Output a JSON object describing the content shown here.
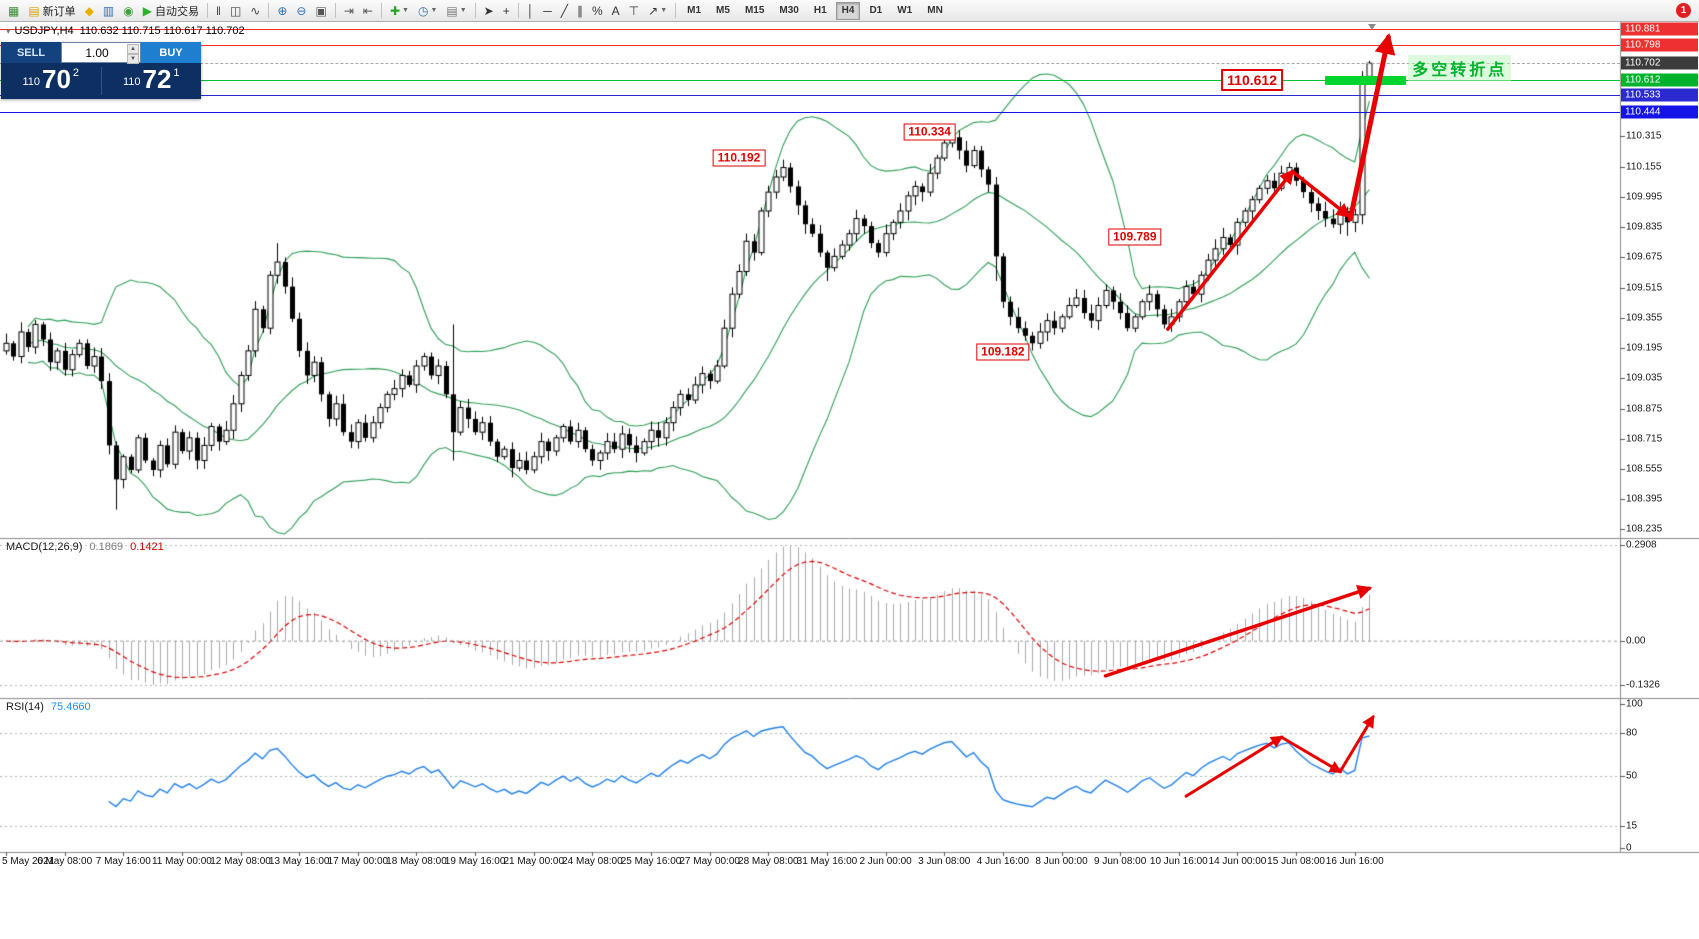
{
  "window": {
    "notification_count": "1"
  },
  "toolbar": {
    "buttons": [
      {
        "name": "new-chart-button",
        "glyph": "▦",
        "color": "#3c8a3c"
      },
      {
        "name": "new-order-button",
        "glyph": "▤",
        "color": "#d7a400",
        "label": "新订单"
      },
      {
        "name": "favorites-button",
        "glyph": "◆",
        "color": "#e8b000"
      },
      {
        "name": "market-watch-button",
        "glyph": "▥",
        "color": "#2f6fb0"
      },
      {
        "name": "navigator-button",
        "glyph": "◉",
        "color": "#3f9f3f"
      },
      {
        "name": "autotrading-button",
        "glyph": "▶",
        "color": "#28b428",
        "label": "自动交易"
      },
      {
        "type": "sep"
      },
      {
        "name": "bar-chart-button",
        "glyph": "‖",
        "color": "#444444"
      },
      {
        "name": "candlestick-chart-button",
        "glyph": "◫",
        "color": "#444444"
      },
      {
        "name": "line-chart-button",
        "glyph": "∿",
        "color": "#444444"
      },
      {
        "type": "sep"
      },
      {
        "name": "zoom-in-button",
        "glyph": "⊕",
        "color": "#2f6fb0"
      },
      {
        "name": "zoom-out-button",
        "glyph": "⊖",
        "color": "#2f6fb0"
      },
      {
        "name": "tile-windows-button",
        "glyph": "▣",
        "color": "#555555"
      },
      {
        "type": "sep"
      },
      {
        "name": "auto-scroll-button",
        "glyph": "⇥",
        "color": "#555555"
      },
      {
        "name": "chart-shift-button",
        "glyph": "⇤",
        "color": "#555555"
      },
      {
        "type": "sep"
      },
      {
        "name": "indicators-button",
        "glyph": "✚",
        "color": "#28a428",
        "dropdown": true
      },
      {
        "name": "periods-button",
        "glyph": "◷",
        "color": "#2f6fb0",
        "dropdown": true
      },
      {
        "name": "templates-button",
        "glyph": "▤",
        "color": "#777777",
        "dropdown": true
      },
      {
        "type": "sep"
      },
      {
        "name": "cursor-button",
        "glyph": "➤",
        "color": "#333333"
      },
      {
        "name": "crosshair-button",
        "glyph": "+",
        "color": "#333333"
      },
      {
        "type": "sep"
      },
      {
        "name": "vertical-line-button",
        "glyph": "│",
        "color": "#333333"
      },
      {
        "name": "horizontal-line-button",
        "glyph": "─",
        "color": "#333333"
      },
      {
        "name": "trendline-button",
        "glyph": "╱",
        "color": "#333333"
      },
      {
        "name": "equidistant-channel-button",
        "glyph": "∥",
        "color": "#333333"
      },
      {
        "name": "fibonacci-button",
        "glyph": "%",
        "color": "#333333"
      },
      {
        "name": "text-button",
        "glyph": "A",
        "color": "#333333"
      },
      {
        "name": "text-label-button",
        "glyph": "⊤",
        "color": "#333333"
      },
      {
        "name": "arrows-button",
        "glyph": "↗",
        "color": "#333333",
        "dropdown": true
      },
      {
        "type": "sep"
      }
    ],
    "timeframes": [
      "M1",
      "M5",
      "M15",
      "M30",
      "H1",
      "H4",
      "D1",
      "W1",
      "MN"
    ],
    "active_timeframe": "H4"
  },
  "quote_header": {
    "symbol_period": "USDJPY,H4",
    "ohlc": "110.632 110.715 110.617 110.702"
  },
  "trade_panel": {
    "sell_label": "SELL",
    "buy_label": "BUY",
    "volume": "1.00",
    "sell_price": {
      "prefix": "110",
      "big": "70",
      "sup": "2"
    },
    "buy_price": {
      "prefix": "110",
      "big": "72",
      "sup": "1"
    }
  },
  "chart_data": {
    "type": "candlestick",
    "symbol": "USDJPY",
    "period": "H4",
    "first_open": 109.18,
    "closes": [
      109.22,
      109.15,
      109.28,
      109.2,
      109.32,
      109.24,
      109.12,
      109.18,
      109.08,
      109.16,
      109.22,
      109.1,
      109.15,
      109.02,
      108.68,
      108.5,
      108.62,
      108.55,
      108.72,
      108.6,
      108.55,
      108.68,
      108.58,
      108.75,
      108.65,
      108.72,
      108.6,
      108.68,
      108.78,
      108.7,
      108.76,
      108.9,
      109.05,
      109.18,
      109.4,
      109.3,
      109.58,
      109.65,
      109.52,
      109.35,
      109.18,
      109.05,
      109.12,
      108.95,
      108.82,
      108.9,
      108.75,
      108.7,
      108.8,
      108.72,
      108.8,
      108.88,
      108.95,
      108.98,
      109.05,
      109.0,
      109.1,
      109.15,
      109.05,
      109.1,
      108.95,
      108.75,
      108.88,
      108.82,
      108.75,
      108.8,
      108.7,
      108.62,
      108.66,
      108.56,
      108.6,
      108.55,
      108.62,
      108.7,
      108.65,
      108.72,
      108.78,
      108.7,
      108.76,
      108.66,
      108.6,
      108.64,
      108.7,
      108.66,
      108.74,
      108.68,
      108.64,
      108.7,
      108.76,
      108.72,
      108.8,
      108.88,
      108.95,
      108.92,
      109.0,
      109.06,
      109.02,
      109.1,
      109.3,
      109.48,
      109.6,
      109.76,
      109.7,
      109.92,
      110.02,
      110.1,
      110.15,
      110.05,
      109.95,
      109.85,
      109.8,
      109.7,
      109.62,
      109.68,
      109.74,
      109.8,
      109.88,
      109.84,
      109.75,
      109.7,
      109.8,
      109.86,
      109.92,
      110.0,
      110.05,
      110.02,
      110.12,
      110.2,
      110.28,
      110.31,
      110.24,
      110.16,
      110.24,
      110.14,
      110.06,
      109.68,
      109.44,
      109.36,
      109.3,
      109.26,
      109.22,
      109.28,
      109.34,
      109.3,
      109.36,
      109.42,
      109.46,
      109.38,
      109.34,
      109.42,
      109.5,
      109.44,
      109.38,
      109.3,
      109.36,
      109.44,
      109.48,
      109.4,
      109.32,
      109.36,
      109.44,
      109.52,
      109.48,
      109.58,
      109.66,
      109.72,
      109.78,
      109.74,
      109.86,
      109.92,
      109.98,
      110.04,
      110.08,
      110.04,
      110.12,
      110.15,
      110.08,
      110.02,
      109.96,
      109.92,
      109.88,
      109.85,
      109.92,
      109.86,
      109.9,
      110.63,
      110.702
    ],
    "current_bar": {
      "open": 110.632,
      "high": 110.715,
      "low": 110.617,
      "close": 110.702
    },
    "wick_overrides": {
      "15": {
        "l": 108.34
      },
      "37": {
        "h": 109.75
      },
      "61": {
        "h": 109.32,
        "l": 108.6
      },
      "106": {
        "h": 110.192
      },
      "112": {
        "l": 109.55
      },
      "129": {
        "h": 110.334
      },
      "135": {
        "h": 110.1,
        "l": 109.55
      },
      "140": {
        "l": 109.182
      },
      "183": {
        "l": 109.789
      },
      "185": {
        "h": 110.66,
        "l": 109.85
      }
    },
    "time_labels": [
      "5 May 2021",
      "6 May 08:00",
      "7 May 16:00",
      "11 May 00:00",
      "12 May 08:00",
      "13 May 16:00",
      "17 May 00:00",
      "18 May 08:00",
      "19 May 16:00",
      "21 May 00:00",
      "24 May 08:00",
      "25 May 16:00",
      "27 May 00:00",
      "28 May 08:00",
      "31 May 16:00",
      "2 Jun 00:00",
      "3 Jun 08:00",
      "4 Jun 16:00",
      "8 Jun 00:00",
      "9 Jun 08:00",
      "10 Jun 16:00",
      "14 Jun 00:00",
      "15 Jun 08:00",
      "16 Jun 16:00"
    ],
    "price_axis": {
      "ticks": [
        "110.315",
        "110.155",
        "109.995",
        "109.835",
        "109.675",
        "109.515",
        "109.355",
        "109.195",
        "109.035",
        "108.875",
        "108.715",
        "108.555",
        "108.395",
        "108.235"
      ],
      "tags": [
        {
          "text": "110.881",
          "price": 110.881,
          "color": "#ef3030"
        },
        {
          "text": "110.798",
          "price": 110.798,
          "color": "#ef3030"
        },
        {
          "text": "110.702",
          "price": 110.702,
          "color": "#3c3c3c"
        },
        {
          "text": "110.612",
          "price": 110.612,
          "color": "#00b32c"
        },
        {
          "text": "110.533",
          "price": 110.533,
          "color": "#2a2ad0"
        },
        {
          "text": "110.444",
          "price": 110.444,
          "color": "#1414e6"
        }
      ]
    },
    "levels": [
      {
        "name": "resistance-line",
        "price": 110.881,
        "color": "#ff2a2a",
        "style": "solid"
      },
      {
        "name": "resistance-line",
        "price": 110.798,
        "color": "#ff2a2a",
        "style": "solid"
      },
      {
        "name": "bid-price-line",
        "price": 110.702,
        "color": "#a8a8a8",
        "style": "dashed"
      },
      {
        "name": "pivot-level-line",
        "price": 110.612,
        "color": "#00c232",
        "style": "solid"
      },
      {
        "name": "support-line",
        "price": 110.533,
        "color": "#2a2ad0",
        "style": "solid"
      },
      {
        "name": "support-line",
        "price": 110.444,
        "color": "#1414e6",
        "style": "solid"
      }
    ],
    "green_bar": {
      "from_bar": 180,
      "to_bar": 191,
      "price": 110.612,
      "color": "#00d42e"
    },
    "annotations": [
      {
        "text": "110.192",
        "bar": 100,
        "price": 110.2,
        "size": "normal"
      },
      {
        "text": "110.334",
        "bar": 126,
        "price": 110.34,
        "size": "normal"
      },
      {
        "text": "109.182",
        "bar": 136,
        "price": 109.175,
        "size": "normal"
      },
      {
        "text": "109.789",
        "bar": 154,
        "price": 109.785,
        "size": "normal"
      },
      {
        "text": "110.612",
        "bar": 170,
        "price": 110.615,
        "size": "big"
      }
    ],
    "pivot_note": {
      "text": "多空转折点",
      "bar": 191.3,
      "price": 110.678,
      "color": "#00b32c"
    },
    "trend_arrows": {
      "main": [
        {
          "points": [
            {
              "bar": 158.5,
              "price": 109.295
            },
            {
              "bar": 175.5,
              "price": 110.13
            }
          ],
          "width": 3.5
        },
        {
          "points": [
            {
              "bar": 175.5,
              "price": 110.13
            },
            {
              "bar": 183.2,
              "price": 109.893
            }
          ],
          "width": 3.5
        },
        {
          "points": [
            {
              "bar": 183.4,
              "price": 109.878
            },
            {
              "bar": 188.6,
              "price": 110.84
            }
          ],
          "width": 5
        }
      ],
      "macd": [
        {
          "points": [
            {
              "bar": 150,
              "value": -0.105
            },
            {
              "bar": 186,
              "value": 0.16
            }
          ],
          "width": 3.5
        }
      ],
      "rsi": [
        {
          "points": [
            {
              "bar": 161,
              "value": 36
            },
            {
              "bar": 174,
              "value": 77
            }
          ],
          "width": 3
        },
        {
          "points": [
            {
              "bar": 174,
              "value": 77
            },
            {
              "bar": 182,
              "value": 53
            }
          ],
          "width": 3
        },
        {
          "points": [
            {
              "bar": 182,
              "value": 53
            },
            {
              "bar": 186.5,
              "value": 91
            }
          ],
          "width": 3
        }
      ]
    },
    "indicators": {
      "bollinger": {
        "period": 20,
        "deviation": 2,
        "color": "#2e9e57"
      },
      "macd": {
        "label": "MACD(12,26,9)",
        "main_value": "0.1869",
        "signal_value": "0.1421",
        "axis": [
          "0.2908",
          "0.00",
          "-0.1326"
        ]
      },
      "rsi": {
        "label": "RSI(14)",
        "value": "75.4660",
        "axis": [
          "100",
          "80",
          "50",
          "15",
          "0"
        ],
        "levels": [
          80,
          50,
          15
        ]
      }
    }
  }
}
